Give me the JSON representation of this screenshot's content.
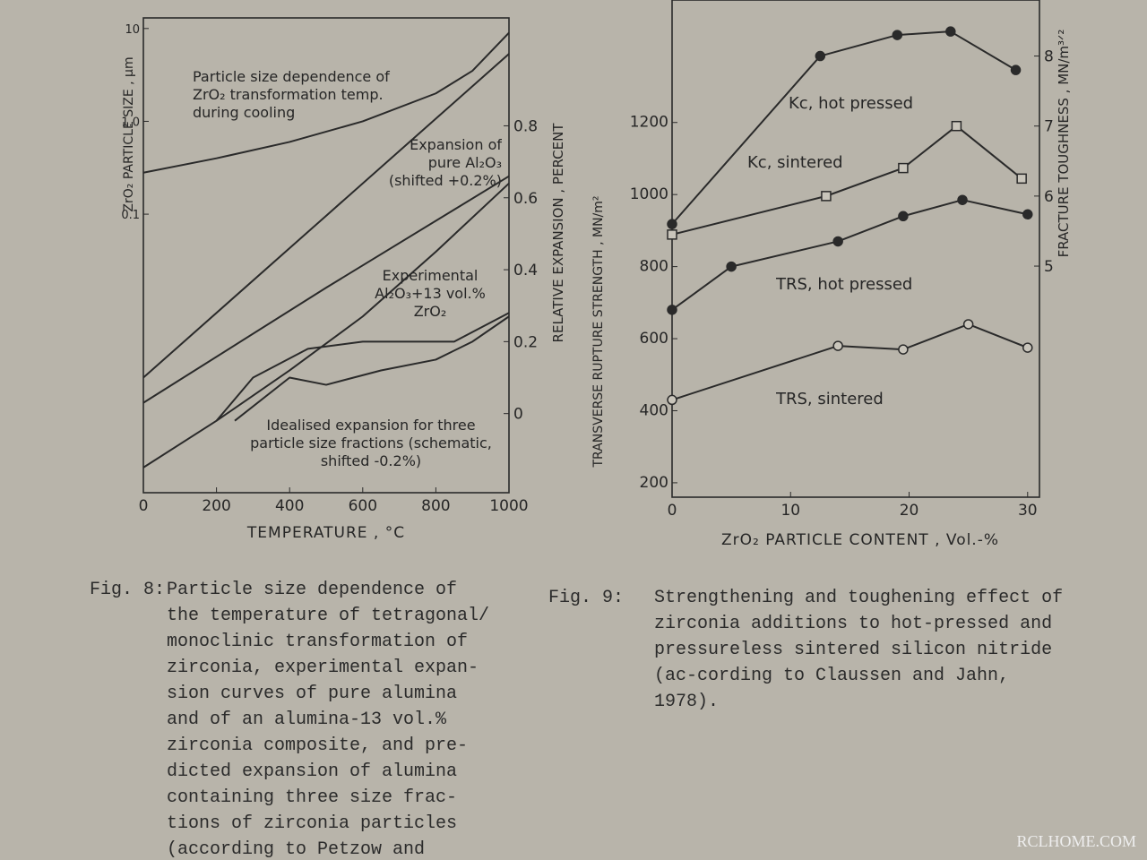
{
  "chart_data": [
    {
      "type": "line",
      "xlabel": "TEMPERATURE , °C",
      "ylabel": "ZrO₂ PARTICLE SIZE , µm",
      "y2label": "RELATIVE EXPANSION , PERCENT",
      "xlim": [
        0,
        1000
      ],
      "xticks": [
        0,
        200,
        400,
        600,
        800,
        1000
      ],
      "ylim": [
        0.0001,
        13
      ],
      "log_y": true,
      "yticks": [
        0.1,
        {
          "value": 1,
          "label": "1.0"
        },
        10
      ],
      "y2lim": [
        -0.22,
        1.1
      ],
      "y2ticks": [
        0,
        0.2,
        0.4,
        0.6,
        0.8
      ],
      "series": [
        {
          "name": "Particle size dependence of ZrO₂ transformation temp. during cooling",
          "color": "#2a2a2a",
          "x": [
            0,
            200,
            400,
            600,
            800,
            900,
            1000
          ],
          "values": [
            0.28,
            0.4,
            0.6,
            1.0,
            2.0,
            3.5,
            9
          ]
        },
        {
          "name": "Expansion of pure Al₂O₃ (shifted +0.2%)",
          "color": "#2a2a2a",
          "axis": "y2",
          "x": [
            0,
            500,
            1000
          ],
          "values": [
            0.1,
            0.55,
            1.0
          ]
        },
        {
          "name": "Experimental Al₂O₃+13 vol.% ZrO₂",
          "color": "#2a2a2a",
          "axis": "y2",
          "x": [
            0,
            500,
            1000
          ],
          "values": [
            0.03,
            0.35,
            0.66
          ]
        },
        {
          "color": "#2a2a2a",
          "axis": "y2",
          "x": [
            0,
            200,
            400,
            600,
            800,
            1000
          ],
          "values": [
            -0.15,
            -0.02,
            0.12,
            0.27,
            0.45,
            0.64
          ]
        },
        {
          "name": "Idealised expansion for three particle size fractions (schematic, shifted -0.2%)",
          "color": "#2a2a2a",
          "axis": "y2",
          "x": [
            200,
            300,
            450,
            600,
            700,
            850,
            1000
          ],
          "values": [
            -0.02,
            0.1,
            0.18,
            0.2,
            0.2,
            0.2,
            0.28
          ]
        },
        {
          "color": "#2a2a2a",
          "axis": "y2",
          "x": [
            250,
            400,
            500,
            650,
            800,
            900,
            1000
          ],
          "values": [
            -0.02,
            0.1,
            0.08,
            0.12,
            0.15,
            0.2,
            0.27
          ]
        }
      ]
    },
    {
      "type": "line",
      "xlabel": "ZrO₂ PARTICLE CONTENT , Vol.-%",
      "ylabel": "TRANSVERSE RUPTURE STRENGTH , MN/m²",
      "y2label": "FRACTURE TOUGHNESS , MN/m³ᐟ²",
      "xlim": [
        0,
        31
      ],
      "xticks": [
        0,
        10,
        20,
        30
      ],
      "ylim": [
        160,
        1540
      ],
      "yticks": [
        200,
        400,
        600,
        800,
        1000,
        1200
      ],
      "y2lim": [
        1.7,
        8.8
      ],
      "y2ticks": [
        5,
        6,
        7,
        8
      ],
      "series": [
        {
          "name": "Kc, hot pressed",
          "color": "#2a2a2a",
          "axis": "y2",
          "marker": "dot",
          "x": [
            0,
            12.5,
            19,
            23.5,
            29
          ],
          "values": [
            5.6,
            8.0,
            8.3,
            8.35,
            7.8
          ]
        },
        {
          "name": "Kc, sintered",
          "color": "#2a2a2a",
          "axis": "y2",
          "marker": "square",
          "x": [
            0,
            13,
            19.5,
            24,
            29.5
          ],
          "values": [
            5.45,
            6.0,
            6.4,
            7.0,
            6.25
          ]
        },
        {
          "name": "TRS, hot pressed",
          "color": "#2a2a2a",
          "marker": "dot",
          "x": [
            0,
            5,
            14,
            19.5,
            24.5,
            30
          ],
          "values": [
            680,
            800,
            870,
            940,
            985,
            945
          ]
        },
        {
          "name": "TRS, sintered",
          "color": "#2a2a2a",
          "marker": "circle",
          "x": [
            0,
            14,
            19.5,
            25,
            30
          ],
          "values": [
            430,
            580,
            570,
            640,
            575
          ]
        }
      ]
    }
  ],
  "captions": [
    {
      "label": "Fig. 8:",
      "text": "Particle size dependence of the temperature of tetragonal/ monoclinic transformation of zirconia, experimental expan-sion curves of pure alumina and of an alumina-13 vol.% zirconia composite, and pre-dicted expansion of alumina containing three size frac-tions of zirconia particles (according to Petzow and"
    },
    {
      "label": "Fig. 9:",
      "text": "Strengthening and toughening effect of zirconia additions to hot-pressed and pressureless sintered silicon nitride (ac-cording to Claussen and Jahn, 1978)."
    }
  ],
  "watermark": "RCLHOME.COM"
}
